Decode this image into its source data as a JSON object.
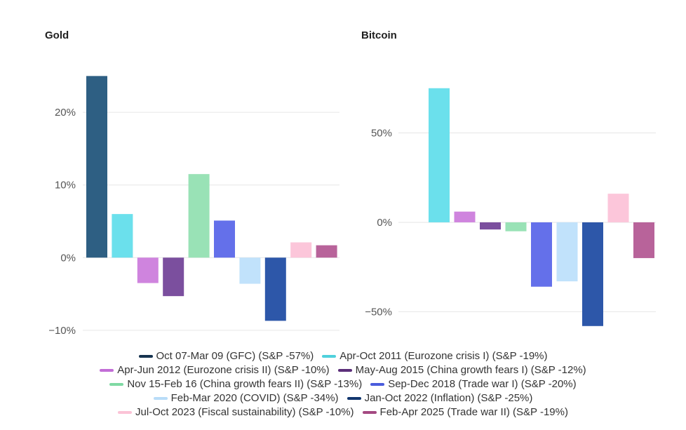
{
  "chart_data": [
    {
      "type": "bar",
      "title": "Gold",
      "ylim": [
        -10.5,
        26
      ],
      "yticks": [
        -10,
        0,
        10,
        20
      ],
      "ytick_labels": [
        "−10%",
        "0%",
        "10%",
        "20%"
      ],
      "grid": true,
      "legend_position": "bottom",
      "categories": [
        "Oct 07-Mar 09 (GFC) (S&P -57%)",
        "Apr-Oct 2011 (Eurozone crisis I) (S&P -19%)",
        "Apr-Jun 2012 (Eurozone crisis II) (S&P -10%)",
        "May-Aug 2015 (China growth fears I) (S&P -12%)",
        "Nov 15-Feb 16 (China growth fears II) (S&P -13%)",
        "Sep-Dec 2018 (Trade war I) (S&P -20%)",
        "Feb-Mar 2020 (COVID) (S&P -34%)",
        "Jan-Oct 2022 (Inflation) (S&P -25%)",
        "Jul-Oct 2023 (Fiscal sustainability) (S&P -10%)",
        "Feb-Apr 2025 (Trade war II) (S&P -19%)"
      ],
      "values": [
        25.0,
        6.0,
        -3.5,
        -5.3,
        11.5,
        5.1,
        -3.6,
        -8.7,
        2.1,
        1.7
      ]
    },
    {
      "type": "bar",
      "title": "Bitcoin",
      "ylim": [
        -62,
        80
      ],
      "yticks": [
        -50,
        0,
        50
      ],
      "ytick_labels": [
        "−50%",
        "0%",
        "50%"
      ],
      "grid": true,
      "legend_position": "bottom",
      "categories": [
        "Apr-Oct 2011 (Eurozone crisis I) (S&P -19%)",
        "Apr-Jun 2012 (Eurozone crisis II) (S&P -10%)",
        "May-Aug 2015 (China growth fears I) (S&P -12%)",
        "Nov 15-Feb 16 (China growth fears II) (S&P -13%)",
        "Sep-Dec 2018 (Trade war I) (S&P -20%)",
        "Feb-Mar 2020 (COVID) (S&P -34%)",
        "Jan-Oct 2022 (Inflation) (S&P -25%)",
        "Jul-Oct 2023 (Fiscal sustainability) (S&P -10%)",
        "Feb-Apr 2025 (Trade war II) (S&P -19%)"
      ],
      "values": [
        75,
        6,
        -4,
        -5,
        -36,
        -33,
        -58,
        16,
        -20
      ]
    }
  ],
  "series_colors": {
    "Oct 07-Mar 09 (GFC) (S&P -57%)": "#2e5f83",
    "Apr-Oct 2011 (Eurozone crisis I) (S&P -19%)": "#6be0ec",
    "Apr-Jun 2012 (Eurozone crisis II) (S&P -10%)": "#cf84de",
    "May-Aug 2015 (China growth fears I) (S&P -12%)": "#7b4f9e",
    "Nov 15-Feb 16 (China growth fears II) (S&P -13%)": "#99e2b6",
    "Sep-Dec 2018 (Trade war I) (S&P -20%)": "#6470ea",
    "Feb-Mar 2020 (COVID) (S&P -34%)": "#c1e2fb",
    "Jan-Oct 2022 (Inflation) (S&P -25%)": "#2d57a9",
    "Jul-Oct 2023 (Fiscal sustainability) (S&P -10%)": "#fcc6da",
    "Feb-Apr 2025 (Trade war II) (S&P -19%)": "#b8639a"
  },
  "legend": {
    "rows": [
      [
        "Oct 07-Mar 09 (GFC) (S&P -57%)",
        "Apr-Oct 2011 (Eurozone crisis I) (S&P -19%)"
      ],
      [
        "Apr-Jun 2012 (Eurozone crisis II) (S&P -10%)",
        "May-Aug 2015 (China growth fears I) (S&P -12%)"
      ],
      [
        "Nov 15-Feb 16 (China growth fears II) (S&P -13%)",
        "Sep-Dec 2018 (Trade war I) (S&P -20%)"
      ],
      [
        "Feb-Mar 2020 (COVID) (S&P -34%)",
        "Jan-Oct 2022 (Inflation) (S&P -25%)"
      ],
      [
        "Jul-Oct 2023 (Fiscal sustainability) (S&P -10%)",
        "Feb-Apr 2025 (Trade war II) (S&P -19%)"
      ]
    ],
    "swatch_colors": [
      [
        "#16334f",
        "#4fd1dc"
      ],
      [
        "#c26dd6",
        "#5c2f7a"
      ],
      [
        "#7fd9a3",
        "#4a5cdc"
      ],
      [
        "#b8dcf8",
        "#12366e"
      ],
      [
        "#fbc3d6",
        "#a44982"
      ]
    ]
  }
}
